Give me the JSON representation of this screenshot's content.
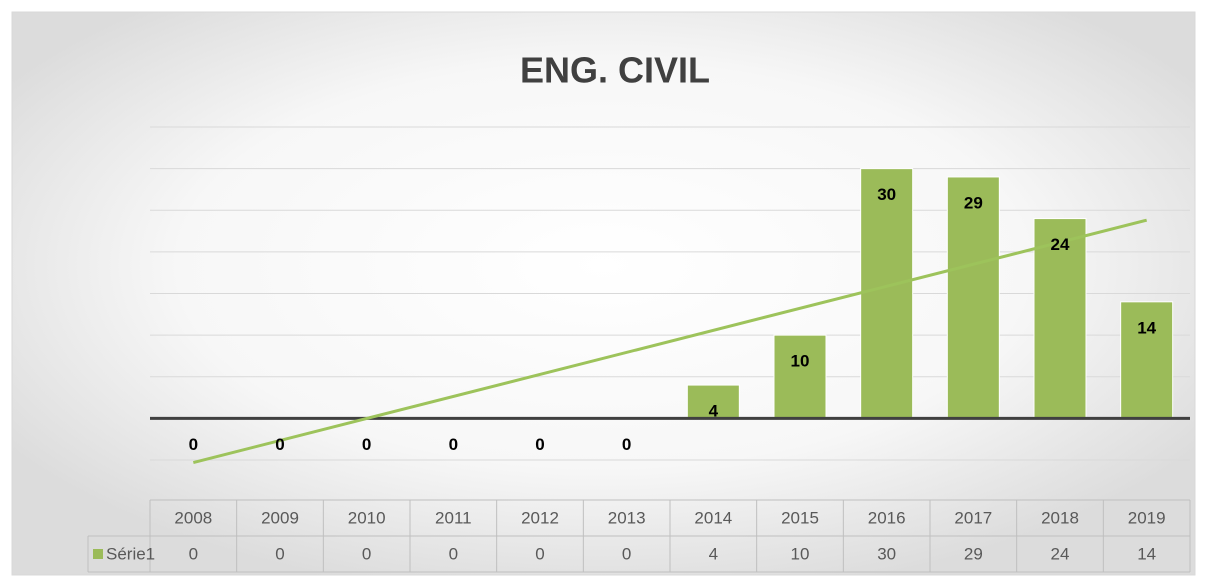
{
  "chart_data": {
    "type": "bar",
    "title": "ENG. CIVIL",
    "categories": [
      "2008",
      "2009",
      "2010",
      "2011",
      "2012",
      "2013",
      "2014",
      "2015",
      "2016",
      "2017",
      "2018",
      "2019"
    ],
    "series": [
      {
        "name": "Série1",
        "color": "#9bbb59",
        "values": [
          0,
          0,
          0,
          0,
          0,
          0,
          4,
          10,
          30,
          29,
          24,
          14
        ]
      }
    ],
    "ylim": [
      -5,
      35
    ],
    "yticks": [
      -5,
      0,
      5,
      10,
      15,
      20,
      25,
      30,
      35
    ],
    "grid": true,
    "trendline": "linear",
    "data_table": true
  }
}
